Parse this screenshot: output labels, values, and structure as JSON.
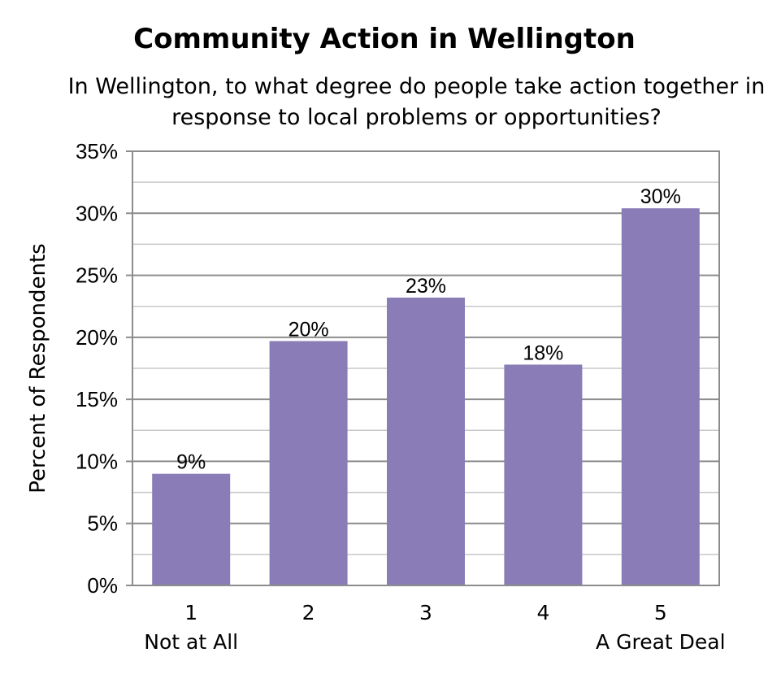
{
  "chart_data": {
    "type": "bar",
    "title": "Community Action in Wellington",
    "subtitle": "In Wellington, to what degree do people take action together in response to local problems or opportunities?",
    "ylabel": "Percent of Respondents",
    "xlabel": "",
    "categories": [
      "1",
      "2",
      "3",
      "4",
      "5"
    ],
    "category_sublabels": [
      "Not at All",
      "",
      "",
      "",
      "A Great Deal"
    ],
    "values": [
      0.09,
      0.197,
      0.232,
      0.178,
      0.304
    ],
    "data_labels": [
      "9%",
      "20%",
      "23%",
      "18%",
      "30%"
    ],
    "ylim": [
      0,
      0.35
    ],
    "yticks": [
      0,
      0.05,
      0.1,
      0.15,
      0.2,
      0.25,
      0.3,
      0.35
    ],
    "ytick_labels": [
      "0%",
      "5%",
      "10%",
      "15%",
      "20%",
      "25%",
      "30%",
      "35%"
    ],
    "grid": true,
    "bar_color": "#8a7db7",
    "grid_color": "#a6a6a6"
  }
}
